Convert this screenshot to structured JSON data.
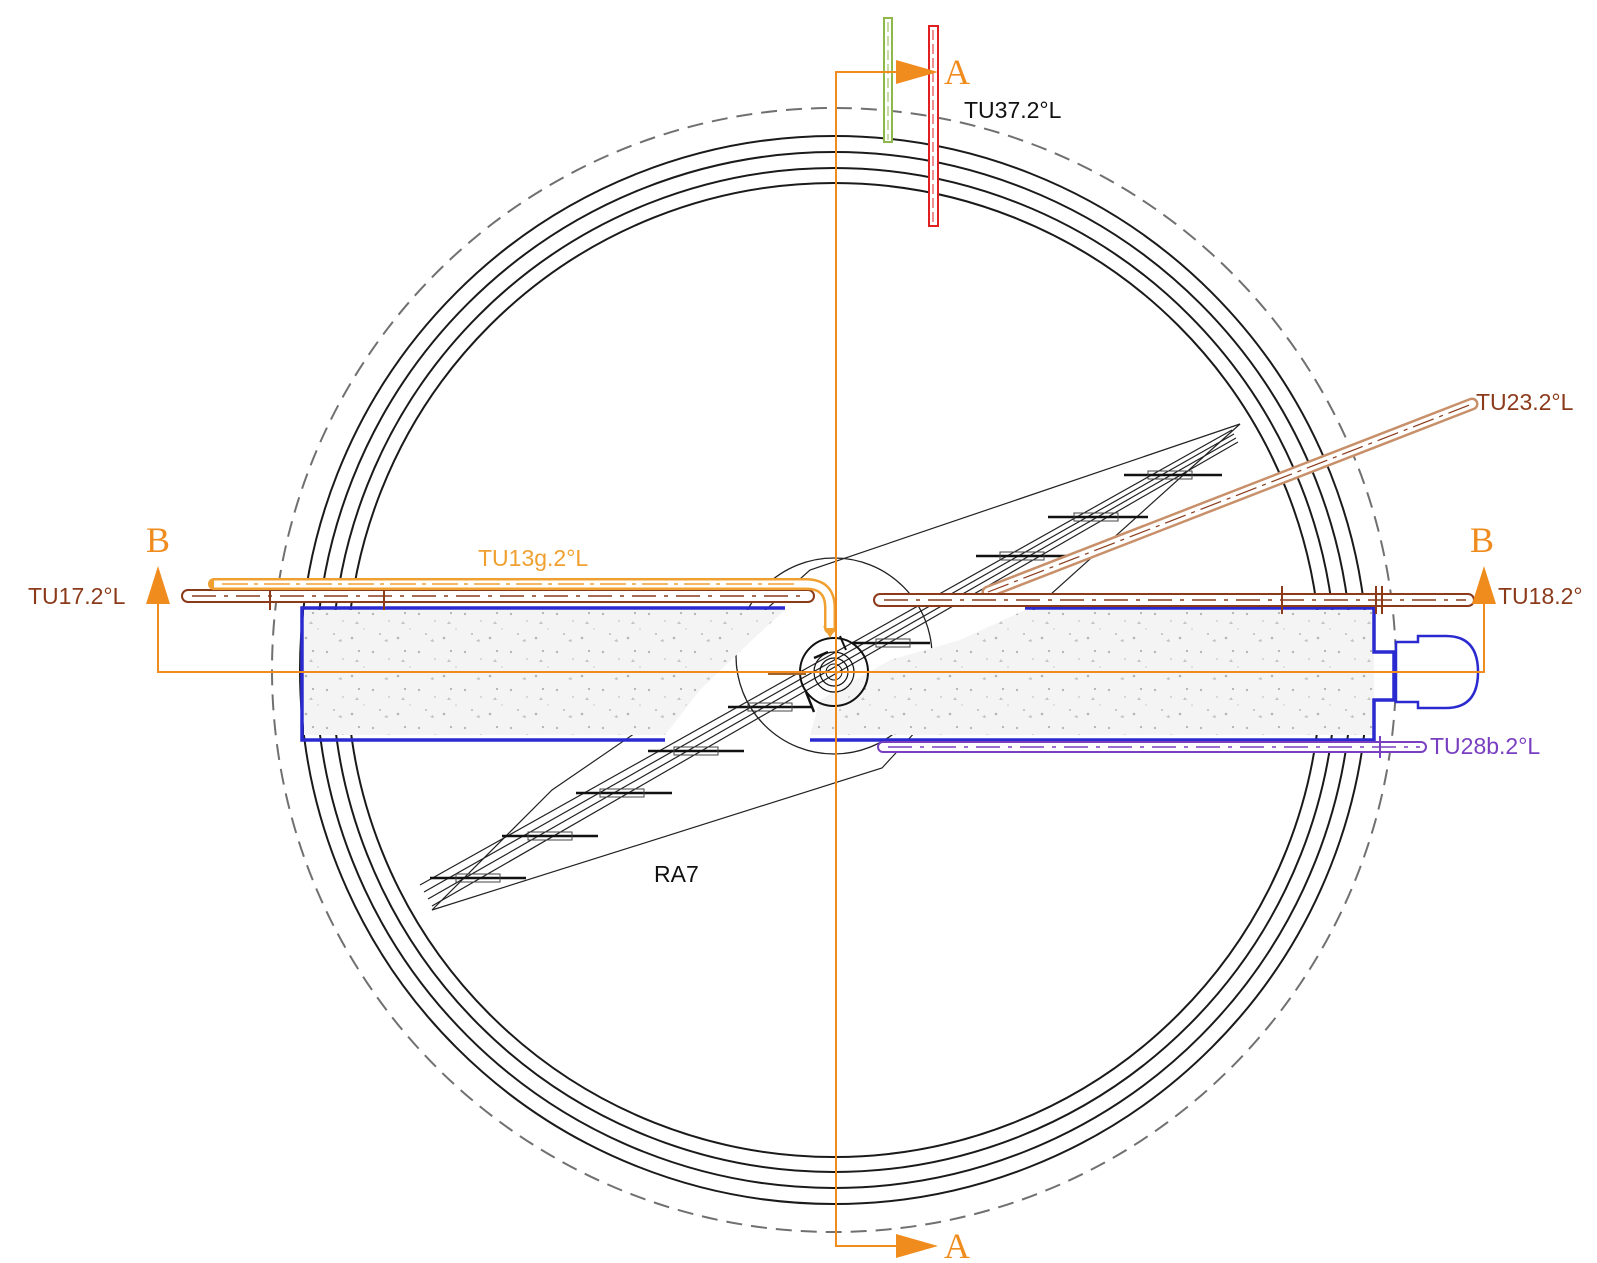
{
  "labels": {
    "tu37": "TU37.2°L",
    "tu23": "TU23.2°L",
    "tu13g": "TU13g.2°L",
    "tu17": "TU17.2°L",
    "tu18": "TU18.2°",
    "tu28b": "TU28b.2°L",
    "ra7": "RA7"
  },
  "section_marks": {
    "a_top": "A",
    "a_bottom": "A",
    "b_left": "B",
    "b_right": "B"
  },
  "colors": {
    "section": "#f08c1e",
    "tu13g": "#f0a030",
    "pipe_brown": "#8b3a1a",
    "tu23": "#c8906a",
    "tu28b": "#7a3fc0",
    "basin": "#2a2ad0",
    "tu37_green": "#8fb84a",
    "tu37_red": "#e02020",
    "linework": "#1a1a1a",
    "dashed_outer": "#707070"
  }
}
